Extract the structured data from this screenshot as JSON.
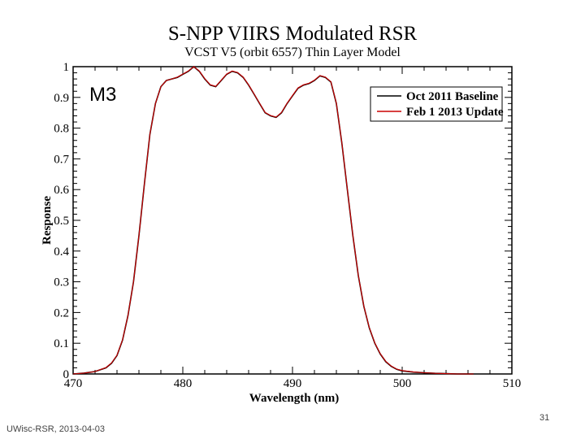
{
  "slide": {
    "footer_left": "UWisc-RSR, 2013-04-03",
    "page_number": "31"
  },
  "chart_data": {
    "type": "line",
    "title": "S-NPP VIIRS Modulated RSR",
    "subtitle": "VCST V5 (orbit 6557) Thin Layer Model",
    "band_label": "M3",
    "xlabel": "Wavelength (nm)",
    "ylabel": "Response",
    "xlim": [
      470,
      510
    ],
    "ylim": [
      0,
      1
    ],
    "xticks": [
      470,
      480,
      490,
      500,
      510
    ],
    "yticks": [
      0,
      0.1,
      0.2,
      0.3,
      0.4,
      0.5,
      0.6,
      0.7,
      0.8,
      0.9,
      1
    ],
    "legend_position": "top-right",
    "series": [
      {
        "name": "Oct 2011 Baseline",
        "color": "#000000",
        "x": [
          470,
          471,
          472,
          473,
          473.5,
          474,
          474.5,
          475,
          475.5,
          476,
          476.5,
          477,
          477.5,
          478,
          478.5,
          479,
          479.5,
          480,
          480.5,
          481,
          481.5,
          482,
          482.5,
          483,
          483.5,
          484,
          484.5,
          485,
          485.5,
          486,
          486.5,
          487,
          487.5,
          488,
          488.5,
          489,
          489.5,
          490,
          490.5,
          491,
          491.5,
          492,
          492.5,
          493,
          493.5,
          494,
          494.5,
          495,
          495.5,
          496,
          496.5,
          497,
          497.5,
          498,
          498.5,
          499,
          499.5,
          500,
          501,
          502,
          503,
          504,
          505,
          506.5
        ],
        "y": [
          0.0,
          0.003,
          0.008,
          0.02,
          0.035,
          0.06,
          0.11,
          0.19,
          0.3,
          0.45,
          0.62,
          0.78,
          0.88,
          0.935,
          0.955,
          0.96,
          0.965,
          0.975,
          0.985,
          1.0,
          0.985,
          0.96,
          0.94,
          0.935,
          0.955,
          0.975,
          0.985,
          0.98,
          0.965,
          0.94,
          0.91,
          0.88,
          0.85,
          0.84,
          0.835,
          0.85,
          0.88,
          0.905,
          0.93,
          0.94,
          0.945,
          0.955,
          0.97,
          0.965,
          0.95,
          0.88,
          0.75,
          0.6,
          0.45,
          0.32,
          0.22,
          0.15,
          0.1,
          0.065,
          0.04,
          0.025,
          0.015,
          0.01,
          0.006,
          0.004,
          0.002,
          0.001,
          0.0,
          0.0
        ]
      },
      {
        "name": "Feb 1 2013 Update",
        "color": "#cc0000",
        "x": [
          470,
          471,
          472,
          473,
          473.5,
          474,
          474.5,
          475,
          475.5,
          476,
          476.5,
          477,
          477.5,
          478,
          478.5,
          479,
          479.5,
          480,
          480.5,
          481,
          481.5,
          482,
          482.5,
          483,
          483.5,
          484,
          484.5,
          485,
          485.5,
          486,
          486.5,
          487,
          487.5,
          488,
          488.5,
          489,
          489.5,
          490,
          490.5,
          491,
          491.5,
          492,
          492.5,
          493,
          493.5,
          494,
          494.5,
          495,
          495.5,
          496,
          496.5,
          497,
          497.5,
          498,
          498.5,
          499,
          499.5,
          500,
          501,
          502,
          503,
          504,
          505,
          506.5
        ],
        "y": [
          0.0,
          0.003,
          0.008,
          0.021,
          0.036,
          0.061,
          0.111,
          0.19,
          0.3,
          0.45,
          0.62,
          0.78,
          0.88,
          0.935,
          0.955,
          0.96,
          0.966,
          0.976,
          0.986,
          1.0,
          0.986,
          0.961,
          0.941,
          0.936,
          0.956,
          0.976,
          0.986,
          0.981,
          0.966,
          0.941,
          0.911,
          0.881,
          0.851,
          0.841,
          0.836,
          0.851,
          0.881,
          0.906,
          0.931,
          0.941,
          0.946,
          0.956,
          0.971,
          0.966,
          0.951,
          0.881,
          0.751,
          0.601,
          0.451,
          0.321,
          0.221,
          0.151,
          0.101,
          0.066,
          0.041,
          0.026,
          0.016,
          0.011,
          0.007,
          0.004,
          0.002,
          0.001,
          0.0,
          0.0
        ]
      }
    ]
  }
}
